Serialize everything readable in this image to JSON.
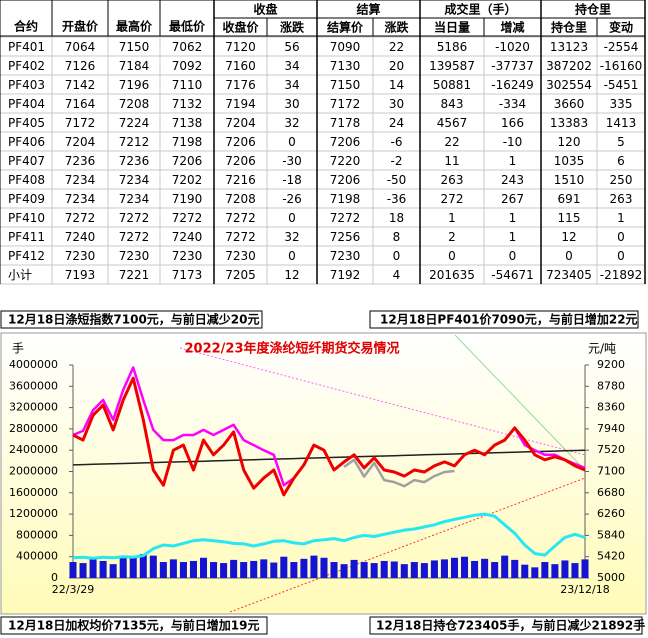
{
  "table": {
    "header_spanned": [
      "合约",
      "开盘价",
      "最高价",
      "最低价"
    ],
    "groups": [
      "收盘",
      "结算",
      "成交里（手）",
      "持仓里"
    ],
    "subheader": [
      "收盘价",
      "涨跌",
      "结算价",
      "涨跌",
      "当日量",
      "增减",
      "持仓里",
      "变动"
    ],
    "rows": [
      [
        "PF401",
        "7064",
        "7150",
        "7062",
        "7120",
        "56",
        "7090",
        "22",
        "5186",
        "-1020",
        "13123",
        "-2554"
      ],
      [
        "PF402",
        "7126",
        "7184",
        "7092",
        "7160",
        "34",
        "7130",
        "20",
        "139587",
        "-37737",
        "387202",
        "-16160"
      ],
      [
        "PF403",
        "7142",
        "7196",
        "7110",
        "7176",
        "34",
        "7150",
        "14",
        "50881",
        "-16249",
        "302554",
        "-5451"
      ],
      [
        "PF404",
        "7164",
        "7208",
        "7132",
        "7194",
        "30",
        "7172",
        "30",
        "843",
        "-334",
        "3660",
        "335"
      ],
      [
        "PF405",
        "7172",
        "7224",
        "7138",
        "7204",
        "32",
        "7178",
        "24",
        "4567",
        "166",
        "13383",
        "1413"
      ],
      [
        "PF406",
        "7204",
        "7212",
        "7198",
        "7206",
        "0",
        "7206",
        "-6",
        "22",
        "-10",
        "120",
        "5"
      ],
      [
        "PF407",
        "7236",
        "7236",
        "7206",
        "7206",
        "-30",
        "7220",
        "-2",
        "11",
        "1",
        "1035",
        "6"
      ],
      [
        "PF408",
        "7234",
        "7234",
        "7202",
        "7216",
        "-18",
        "7206",
        "-50",
        "263",
        "243",
        "1510",
        "250"
      ],
      [
        "PF409",
        "7234",
        "7234",
        "7190",
        "7208",
        "-26",
        "7198",
        "-36",
        "272",
        "267",
        "691",
        "263"
      ],
      [
        "PF410",
        "7272",
        "7272",
        "7272",
        "7272",
        "0",
        "7272",
        "18",
        "1",
        "1",
        "115",
        "1"
      ],
      [
        "PF411",
        "7240",
        "7272",
        "7240",
        "7272",
        "32",
        "7256",
        "8",
        "2",
        "1",
        "12",
        "0"
      ],
      [
        "PF412",
        "7230",
        "7230",
        "7230",
        "7230",
        "0",
        "7230",
        "0",
        "0",
        "0",
        "0",
        "0"
      ],
      [
        "小计",
        "7193",
        "7221",
        "7173",
        "7205",
        "12",
        "7192",
        "4",
        "201635",
        "-54671",
        "723405",
        "-21892"
      ]
    ]
  },
  "notes": [
    "12月18日涤短指数7100元，与前日减少20元",
    "12月18日PF401价7090元，与前日增加22元",
    "12月18日加权均价7135元，与前日增加19元",
    "12月18日持仓723405手，与前日减少21892手"
  ],
  "chart_data": {
    "type": "line",
    "title": "2022/23年度涤纶短纤期货交易情况",
    "ylabel": "手",
    "y2label": "元/吨",
    "categories": [
      "22/3/29",
      null,
      null,
      null,
      null,
      null,
      null,
      null,
      null,
      null,
      null,
      null,
      null,
      null,
      null,
      null,
      null,
      null,
      null,
      null,
      null,
      null,
      null,
      null,
      null,
      null,
      null,
      null,
      null,
      null,
      null,
      null,
      null,
      null,
      null,
      null,
      null,
      null,
      null,
      null,
      null,
      null,
      null,
      null,
      null,
      null,
      null,
      null,
      null,
      null,
      null,
      "23/12/18"
    ],
    "ylim": [
      0,
      4000000
    ],
    "yticks": [
      0,
      400000,
      800000,
      1200000,
      1600000,
      2000000,
      2400000,
      2800000,
      3200000,
      3600000,
      4000000
    ],
    "y2lim": [
      5000,
      9200
    ],
    "y2ticks": [
      5000,
      5420,
      5840,
      6260,
      6680,
      7100,
      7520,
      7940,
      8360,
      8780,
      9200
    ],
    "series": [
      {
        "type": "bar",
        "axis": "y",
        "color": "#1414d2",
        "values": [
          300000,
          280000,
          350000,
          320000,
          260000,
          400000,
          380000,
          450000,
          420000,
          300000,
          350000,
          300000,
          320000,
          380000,
          300000,
          280000,
          340000,
          300000,
          320000,
          350000,
          290000,
          400000,
          300000,
          360000,
          420000,
          380000,
          300000,
          260000,
          340000,
          300000,
          280000,
          320000,
          310000,
          260000,
          300000,
          280000,
          330000,
          350000,
          380000,
          400000,
          320000,
          360000,
          300000,
          420000,
          340000,
          250000,
          200000,
          300000,
          260000,
          330000,
          280000,
          350000
        ]
      },
      {
        "axis": "y",
        "color": "#27e8f0",
        "values": [
          380000,
          390000,
          370000,
          390000,
          380000,
          400000,
          390000,
          420000,
          550000,
          620000,
          600000,
          650000,
          700000,
          720000,
          700000,
          680000,
          650000,
          640000,
          600000,
          640000,
          690000,
          700000,
          660000,
          640000,
          700000,
          720000,
          740000,
          700000,
          760000,
          800000,
          780000,
          820000,
          860000,
          900000,
          920000,
          960000,
          1000000,
          1060000,
          1100000,
          1140000,
          1180000,
          1200000,
          1160000,
          1000000,
          840000,
          620000,
          460000,
          430000,
          600000,
          760000,
          820000,
          760000
        ]
      },
      {
        "axis": "y2",
        "color": "#202020",
        "values": [
          7230,
          7236,
          7241,
          7247,
          7253,
          7258,
          7264,
          7270,
          7275,
          7281,
          7287,
          7293,
          7298,
          7304,
          7310,
          7315,
          7321,
          7327,
          7332,
          7338,
          7344,
          7349,
          7355,
          7361,
          7366,
          7372,
          7378,
          7384,
          7389,
          7395,
          7401,
          7406,
          7412,
          7418,
          7423,
          7429,
          7435,
          7440,
          7446,
          7452,
          7457,
          7463,
          7469,
          7475,
          7480,
          7486,
          7492,
          7497,
          7503,
          7509,
          7514,
          7520
        ]
      },
      {
        "axis": "y2",
        "color": "#a0a0a0",
        "values": [
          null,
          null,
          null,
          null,
          null,
          null,
          null,
          null,
          null,
          null,
          null,
          null,
          null,
          null,
          null,
          null,
          null,
          null,
          null,
          null,
          null,
          null,
          null,
          null,
          null,
          null,
          null,
          7190,
          7330,
          7000,
          7270,
          6930,
          6890,
          6810,
          6930,
          6890,
          7010,
          7090,
          7110,
          null,
          null,
          null,
          null,
          null,
          null,
          null,
          null,
          null,
          null,
          null,
          null,
          null
        ]
      },
      {
        "axis": "y2",
        "color": "#ff00ff",
        "values": [
          7820,
          7900,
          8310,
          8510,
          8120,
          8710,
          9150,
          8510,
          7920,
          7720,
          7720,
          7820,
          7820,
          7920,
          7820,
          7920,
          8020,
          7720,
          7620,
          7520,
          7430,
          6830,
          6970,
          7230,
          7620,
          7520,
          7130,
          7290,
          7430,
          7170,
          7370,
          7130,
          7090,
          7010,
          7130,
          7090,
          7210,
          7290,
          7210,
          7430,
          7520,
          7430,
          7620,
          7720,
          7960,
          7620,
          7520,
          7430,
          7430,
          7330,
          7250,
          7170
        ]
      },
      {
        "axis": "y2",
        "color": "#ee0000",
        "values": [
          7820,
          7720,
          8210,
          8410,
          7920,
          8510,
          8940,
          8120,
          7130,
          6830,
          7520,
          7620,
          7130,
          7720,
          7430,
          7620,
          7880,
          7130,
          6770,
          6970,
          7130,
          6640,
          6970,
          7230,
          7620,
          7520,
          7130,
          7290,
          7430,
          7170,
          7370,
          7130,
          7090,
          7010,
          7130,
          7090,
          7210,
          7290,
          7210,
          7430,
          7520,
          7430,
          7620,
          7720,
          7960,
          7720,
          7430,
          7330,
          7390,
          7330,
          7210,
          7130
        ]
      }
    ]
  }
}
